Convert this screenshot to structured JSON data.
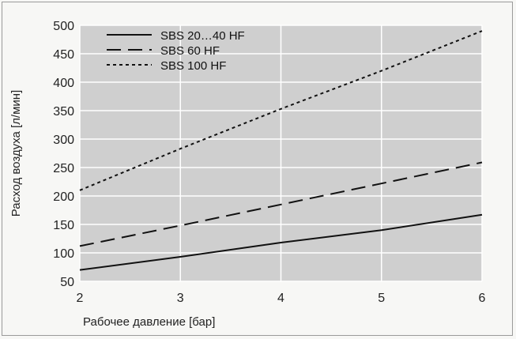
{
  "chart_data": {
    "type": "line",
    "title": "",
    "xlabel": "Рабочее давление [бар]",
    "ylabel": "Расход воздуха [л/мин]",
    "xlim": [
      2,
      6
    ],
    "ylim": [
      50,
      500
    ],
    "xticks": [
      2,
      3,
      4,
      5,
      6
    ],
    "yticks": [
      50,
      100,
      150,
      200,
      250,
      300,
      350,
      400,
      450,
      500
    ],
    "grid": true,
    "legend_position": "top-left",
    "plot_background": "#cfcfcf",
    "gridline_color": "#ffffff",
    "line_color": "#111111",
    "series": [
      {
        "name": "SBS 20…40 HF",
        "style": "solid",
        "x": [
          2,
          3,
          4,
          5,
          6
        ],
        "y": [
          70,
          93,
          118,
          140,
          167
        ]
      },
      {
        "name": "SBS 60 HF",
        "style": "dashed",
        "x": [
          2,
          3,
          4,
          5,
          6
        ],
        "y": [
          112,
          148,
          185,
          222,
          259
        ]
      },
      {
        "name": "SBS 100 HF",
        "style": "dotted",
        "x": [
          2,
          3,
          4,
          5,
          6
        ],
        "y": [
          210,
          283,
          353,
          420,
          490
        ]
      }
    ]
  }
}
